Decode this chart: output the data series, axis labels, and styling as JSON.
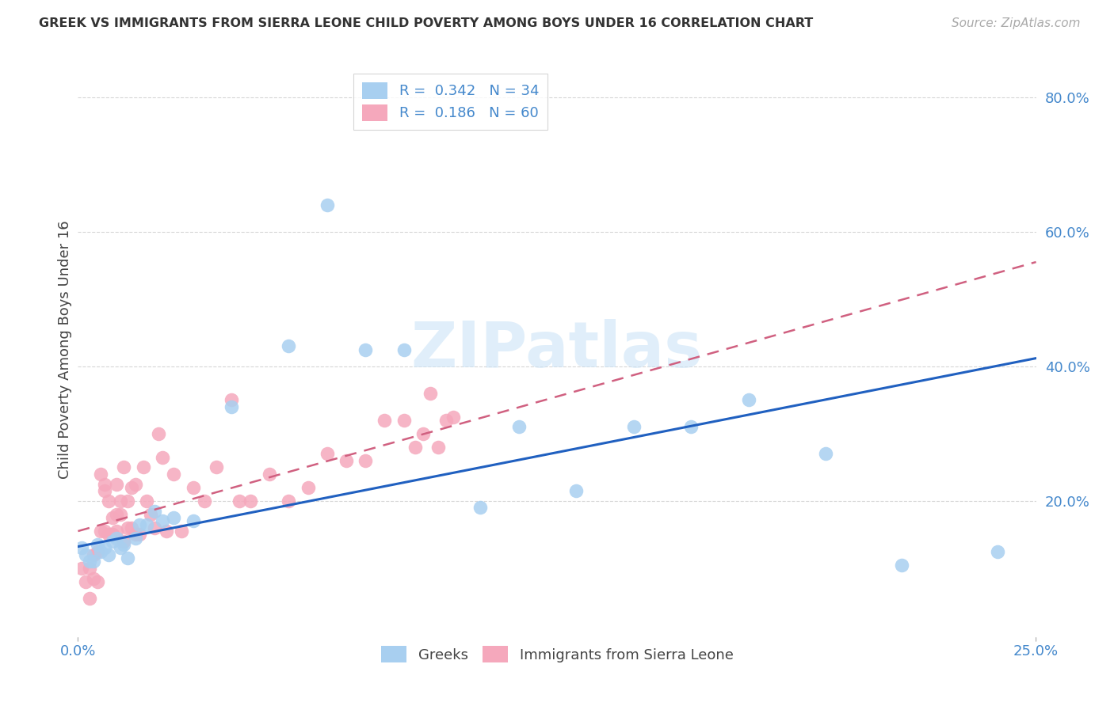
{
  "title": "GREEK VS IMMIGRANTS FROM SIERRA LEONE CHILD POVERTY AMONG BOYS UNDER 16 CORRELATION CHART",
  "source": "Source: ZipAtlas.com",
  "legend_label1": "Greeks",
  "legend_label2": "Immigrants from Sierra Leone",
  "R1": "0.342",
  "N1": "34",
  "R2": "0.186",
  "N2": "60",
  "color_greek": "#a8cff0",
  "color_sl": "#f5a8bc",
  "color_line_greek": "#2060c0",
  "color_line_sl": "#d06080",
  "watermark_color": "#cce4f7",
  "title_color": "#333333",
  "axis_label_color": "#444444",
  "tick_color": "#4488cc",
  "source_color": "#aaaaaa",
  "background_color": "#ffffff",
  "grid_color": "#cccccc",
  "greek_x": [
    0.001,
    0.002,
    0.003,
    0.004,
    0.005,
    0.006,
    0.007,
    0.008,
    0.009,
    0.01,
    0.011,
    0.012,
    0.013,
    0.015,
    0.016,
    0.018,
    0.02,
    0.022,
    0.025,
    0.03,
    0.04,
    0.055,
    0.065,
    0.075,
    0.085,
    0.105,
    0.115,
    0.13,
    0.145,
    0.16,
    0.175,
    0.195,
    0.215,
    0.24
  ],
  "greek_y": [
    0.13,
    0.12,
    0.11,
    0.11,
    0.135,
    0.125,
    0.13,
    0.12,
    0.14,
    0.145,
    0.13,
    0.135,
    0.115,
    0.145,
    0.165,
    0.165,
    0.185,
    0.17,
    0.175,
    0.17,
    0.34,
    0.43,
    0.64,
    0.425,
    0.425,
    0.19,
    0.31,
    0.215,
    0.31,
    0.31,
    0.35,
    0.27,
    0.105,
    0.125
  ],
  "sl_x": [
    0.001,
    0.002,
    0.003,
    0.003,
    0.004,
    0.004,
    0.005,
    0.005,
    0.006,
    0.006,
    0.007,
    0.007,
    0.007,
    0.008,
    0.008,
    0.009,
    0.009,
    0.01,
    0.01,
    0.01,
    0.011,
    0.011,
    0.012,
    0.012,
    0.013,
    0.013,
    0.014,
    0.014,
    0.015,
    0.015,
    0.016,
    0.017,
    0.018,
    0.019,
    0.02,
    0.021,
    0.022,
    0.023,
    0.025,
    0.027,
    0.03,
    0.033,
    0.036,
    0.04,
    0.042,
    0.045,
    0.05,
    0.055,
    0.06,
    0.065,
    0.07,
    0.075,
    0.08,
    0.085,
    0.088,
    0.09,
    0.092,
    0.094,
    0.096,
    0.098
  ],
  "sl_y": [
    0.1,
    0.08,
    0.1,
    0.055,
    0.12,
    0.085,
    0.08,
    0.125,
    0.24,
    0.155,
    0.155,
    0.215,
    0.225,
    0.15,
    0.2,
    0.15,
    0.175,
    0.18,
    0.225,
    0.155,
    0.18,
    0.2,
    0.14,
    0.25,
    0.16,
    0.2,
    0.16,
    0.22,
    0.225,
    0.15,
    0.15,
    0.25,
    0.2,
    0.18,
    0.16,
    0.3,
    0.265,
    0.155,
    0.24,
    0.155,
    0.22,
    0.2,
    0.25,
    0.35,
    0.2,
    0.2,
    0.24,
    0.2,
    0.22,
    0.27,
    0.26,
    0.26,
    0.32,
    0.32,
    0.28,
    0.3,
    0.36,
    0.28,
    0.32,
    0.325
  ],
  "xmin": 0.0,
  "xmax": 0.25,
  "ymin": 0.0,
  "ymax": 0.85,
  "yticks": [
    0.2,
    0.4,
    0.6,
    0.8
  ],
  "ytick_labels": [
    "20.0%",
    "40.0%",
    "60.0%",
    "80.0%"
  ],
  "xticks": [
    0.0,
    0.25
  ],
  "xtick_labels": [
    "0.0%",
    "25.0%"
  ],
  "ylabel": "Child Poverty Among Boys Under 16",
  "line_greek_intercept": 0.132,
  "line_greek_slope": 1.12,
  "line_sl_intercept": 0.155,
  "line_sl_slope": 1.6
}
